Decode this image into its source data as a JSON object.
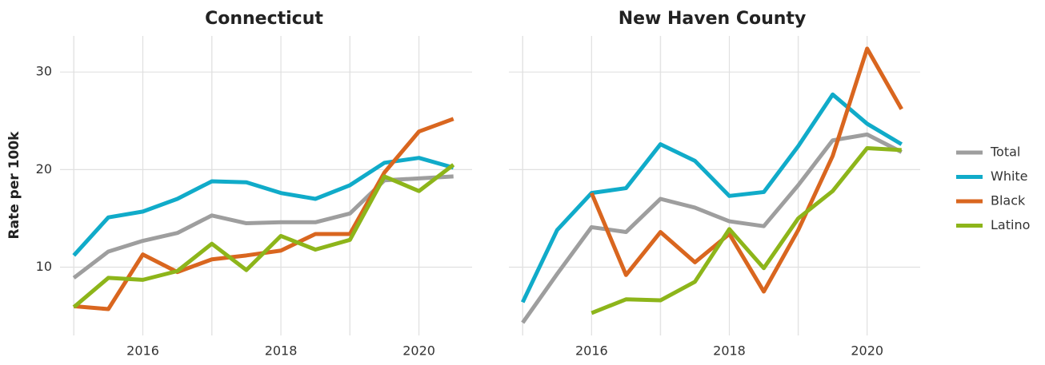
{
  "chart_data": [
    {
      "type": "line",
      "title": "Connecticut",
      "y_label": "Rate per 100k",
      "x": [
        2015,
        2015.5,
        2016,
        2016.5,
        2017,
        2017.5,
        2018,
        2018.5,
        2019,
        2019.5,
        2020,
        2020.5
      ],
      "series": [
        {
          "name": "Total",
          "color": "#9e9e9e",
          "values": [
            8.9,
            11.6,
            12.7,
            13.5,
            15.3,
            14.5,
            14.6,
            14.6,
            15.5,
            18.9,
            19.1,
            19.3
          ]
        },
        {
          "name": "White",
          "color": "#10abc9",
          "values": [
            11.2,
            15.1,
            15.7,
            17.0,
            18.8,
            18.7,
            17.6,
            17.0,
            18.4,
            20.7,
            21.2,
            20.2
          ]
        },
        {
          "name": "Black",
          "color": "#d9661f",
          "values": [
            6.0,
            5.7,
            11.3,
            9.5,
            10.8,
            11.2,
            11.7,
            13.4,
            13.4,
            19.7,
            23.9,
            25.2
          ]
        },
        {
          "name": "Latino",
          "color": "#8db51a",
          "values": [
            5.9,
            8.9,
            8.7,
            9.6,
            12.4,
            9.7,
            13.2,
            11.8,
            12.8,
            19.3,
            17.8,
            20.5
          ]
        }
      ],
      "xlim": [
        2014.8,
        2020.77
      ],
      "xticks": [
        2016,
        2018,
        2020
      ],
      "x_minor_ticks": [
        2015,
        2017,
        2019
      ],
      "ylim": [
        3,
        33.7
      ],
      "yticks": [
        10,
        20,
        30
      ],
      "grid": true
    },
    {
      "type": "line",
      "title": "New Haven County",
      "x": [
        2015,
        2015.5,
        2016,
        2016.5,
        2017,
        2017.5,
        2018,
        2018.5,
        2019,
        2019.5,
        2020,
        2020.5
      ],
      "series": [
        {
          "name": "Total",
          "color": "#9e9e9e",
          "values": [
            4.3,
            9.3,
            14.1,
            13.6,
            17.0,
            16.1,
            14.7,
            14.2,
            18.4,
            23.0,
            23.6,
            21.8
          ]
        },
        {
          "name": "White",
          "color": "#10abc9",
          "values": [
            6.4,
            13.8,
            17.6,
            18.1,
            22.6,
            20.9,
            17.3,
            17.7,
            22.4,
            27.7,
            24.7,
            22.6
          ]
        },
        {
          "name": "Black",
          "color": "#d9661f",
          "values": [
            null,
            null,
            17.6,
            9.2,
            13.6,
            10.5,
            13.4,
            7.5,
            13.8,
            21.4,
            32.4,
            26.2
          ]
        },
        {
          "name": "Latino",
          "color": "#8db51a",
          "values": [
            null,
            null,
            5.3,
            6.7,
            6.6,
            8.5,
            13.9,
            9.9,
            15.0,
            17.8,
            22.2,
            22.0
          ]
        }
      ],
      "xlim": [
        2014.8,
        2020.77
      ],
      "xticks": [
        2016,
        2018,
        2020
      ],
      "x_minor_ticks": [
        2015,
        2017,
        2019
      ],
      "ylim": [
        3,
        33.7
      ],
      "yticks": [
        10,
        20,
        30
      ],
      "show_ytick_labels": false,
      "grid": true,
      "legend": "right"
    }
  ]
}
